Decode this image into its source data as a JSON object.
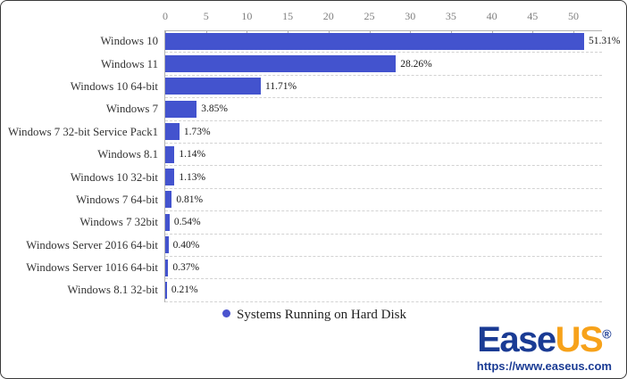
{
  "chart_data": {
    "type": "bar",
    "orientation": "horizontal",
    "title": "",
    "xlabel": "",
    "ylabel": "",
    "categories": [
      "Windows 10",
      "Windows 11",
      "Windows 10 64-bit",
      "Windows 7",
      "Windows 7 32-bit Service Pack1",
      "Windows 8.1",
      "Windows 10 32-bit",
      "Windows 7 64-bit",
      "Windows 7 32bit",
      "Windows Server 2016 64-bit",
      "Windows Server 1016 64-bit",
      "Windows 8.1 32-bit"
    ],
    "values": [
      51.31,
      28.26,
      11.71,
      3.85,
      1.73,
      1.14,
      1.13,
      0.81,
      0.54,
      0.4,
      0.37,
      0.21
    ],
    "value_labels": [
      "51.31%",
      "28.26%",
      "11.71%",
      "3.85%",
      "1.73%",
      "1.14%",
      "1.13%",
      "0.81%",
      "0.54%",
      "0.40%",
      "0.37%",
      "0.21%"
    ],
    "x_ticks": [
      0,
      5,
      10,
      15,
      20,
      25,
      30,
      35,
      40,
      45,
      50
    ],
    "xlim": [
      0,
      53.5
    ],
    "grid": "dashed horizontal row separators",
    "axis_position": "top",
    "legend": "Systems Running on Hard Disk",
    "legend_position": "bottom-center",
    "bar_color": "#4353ce",
    "legend_marker_color": "#4a53ce"
  },
  "branding": {
    "logo_ease": "Ease",
    "logo_us": "US",
    "registered_mark": "®",
    "url": "https://www.easeus.com",
    "ease_color": "#1a3b94",
    "us_color": "#f7a21a"
  }
}
